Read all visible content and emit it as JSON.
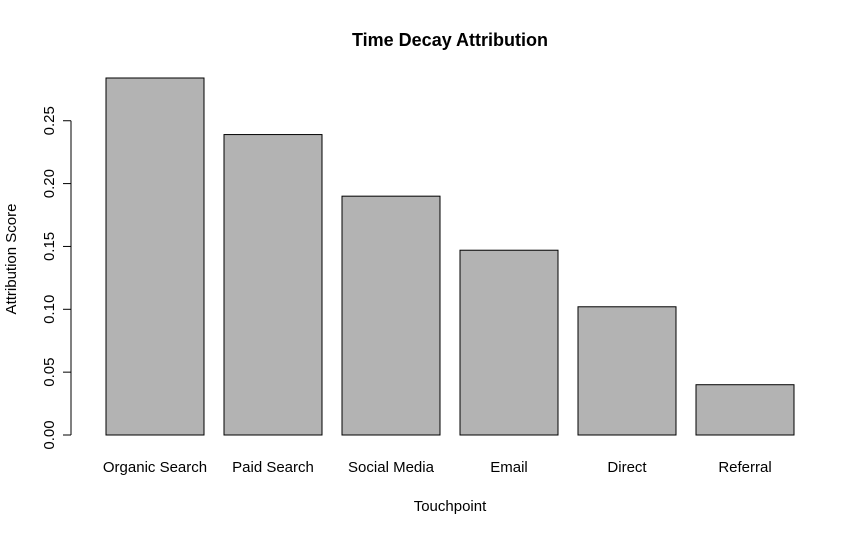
{
  "chart_data": {
    "type": "bar",
    "title": "Time Decay Attribution",
    "x_label": "Touchpoint",
    "y_label": "Attribution Score",
    "categories": [
      "Organic Search",
      "Paid Search",
      "Social Media",
      "Email",
      "Direct",
      "Referral"
    ],
    "values": [
      0.284,
      0.239,
      0.19,
      0.147,
      0.102,
      0.04
    ],
    "color": "#b3b3b3",
    "ylim": [
      0,
      0.284
    ],
    "yticks": [
      {
        "value": 0,
        "label": "0.00"
      },
      0.05,
      {
        "value": 0.1,
        "label": "0.10"
      },
      0.15,
      {
        "value": 0.2,
        "label": "0.20"
      },
      0.25
    ],
    "grid": false
  }
}
